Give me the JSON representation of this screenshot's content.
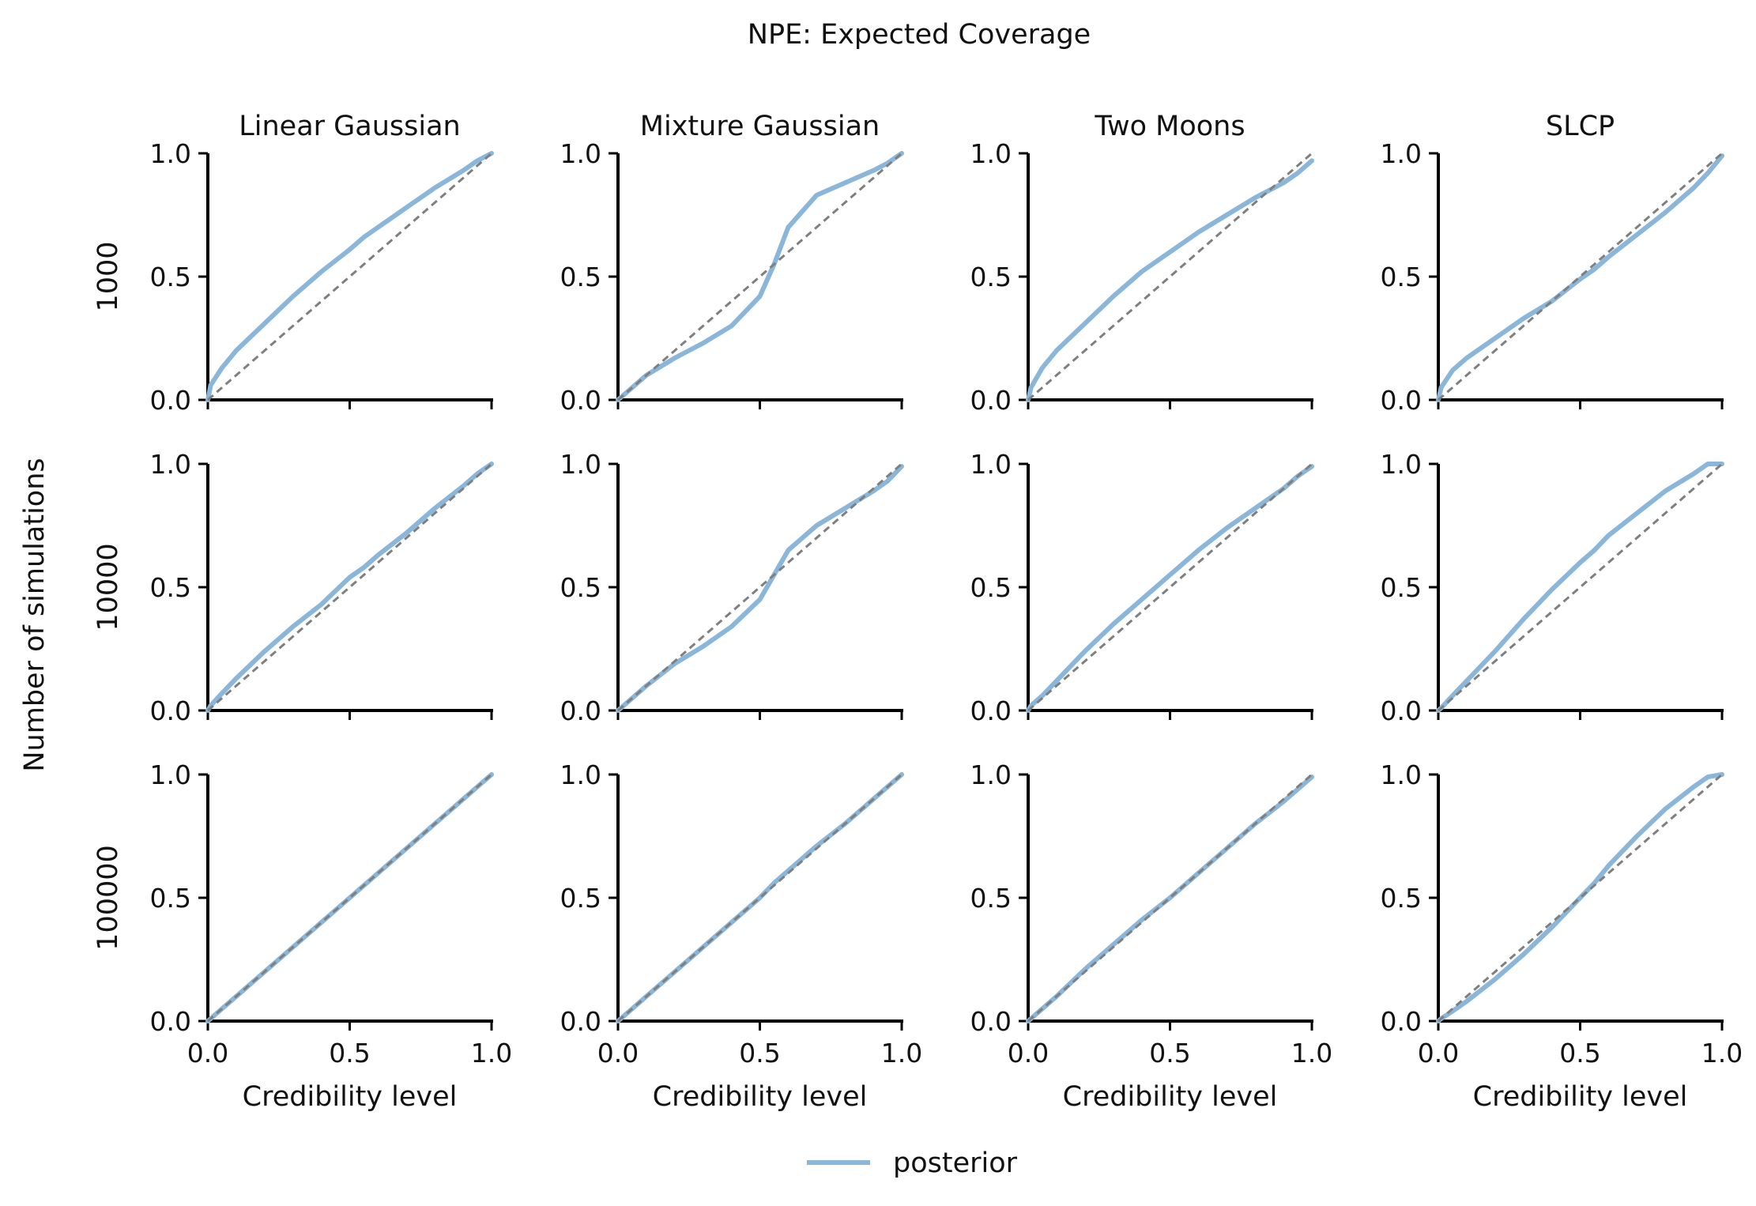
{
  "figure": {
    "title": "NPE: Expected Coverage",
    "ylabel": "Number of simulations",
    "xlabel": "Credibility level",
    "legend": {
      "label": "posterior",
      "placement": "bottom-center"
    }
  },
  "colors": {
    "posterior": "#8ab6d9",
    "reference": "#7f7f7f",
    "axis": "#000000"
  },
  "chart_data": {
    "type": "line",
    "title": "NPE: Expected Coverage",
    "xlabel": "Credibility level",
    "ylabel": "Number of simulations",
    "xlim": [
      0,
      1
    ],
    "ylim": [
      0,
      1
    ],
    "ticks": [
      "0.0",
      "0.5",
      "1.0"
    ],
    "grid": false,
    "legend_placement": "bottom-center",
    "columns": [
      "Linear Gaussian",
      "Mixture Gaussian",
      "Two Moons",
      "SLCP"
    ],
    "rows": [
      "1000",
      "10000",
      "100000"
    ],
    "x": [
      0,
      0.01,
      0.05,
      0.1,
      0.2,
      0.3,
      0.4,
      0.5,
      0.55,
      0.6,
      0.7,
      0.8,
      0.9,
      0.95,
      1.0
    ],
    "panels": [
      {
        "row": "1000",
        "column": "Linear Gaussian",
        "series": [
          {
            "name": "posterior",
            "values": [
              0,
              0.06,
              0.13,
              0.2,
              0.31,
              0.42,
              0.52,
              0.61,
              0.66,
              0.7,
              0.78,
              0.86,
              0.93,
              0.97,
              1.0
            ]
          },
          {
            "values": [
              0,
              0.01,
              0.05,
              0.1,
              0.2,
              0.3,
              0.4,
              0.5,
              0.55,
              0.6,
              0.7,
              0.8,
              0.9,
              0.95,
              1.0
            ]
          }
        ]
      },
      {
        "row": "1000",
        "column": "Mixture Gaussian",
        "series": [
          {
            "name": "posterior",
            "values": [
              0,
              0.01,
              0.05,
              0.1,
              0.17,
              0.23,
              0.3,
              0.42,
              0.55,
              0.7,
              0.83,
              0.88,
              0.93,
              0.96,
              1.0
            ]
          },
          {
            "values": [
              0,
              0.01,
              0.05,
              0.1,
              0.2,
              0.3,
              0.4,
              0.5,
              0.55,
              0.6,
              0.7,
              0.8,
              0.9,
              0.95,
              1.0
            ]
          }
        ]
      },
      {
        "row": "1000",
        "column": "Two Moons",
        "series": [
          {
            "name": "posterior",
            "values": [
              0,
              0.05,
              0.13,
              0.2,
              0.31,
              0.42,
              0.52,
              0.6,
              0.64,
              0.68,
              0.75,
              0.82,
              0.88,
              0.92,
              0.97
            ]
          },
          {
            "values": [
              0,
              0.01,
              0.05,
              0.1,
              0.2,
              0.3,
              0.4,
              0.5,
              0.55,
              0.6,
              0.7,
              0.8,
              0.9,
              0.95,
              1.0
            ]
          }
        ]
      },
      {
        "row": "1000",
        "column": "SLCP",
        "series": [
          {
            "name": "posterior",
            "values": [
              0,
              0.05,
              0.12,
              0.17,
              0.25,
              0.33,
              0.4,
              0.49,
              0.53,
              0.58,
              0.67,
              0.76,
              0.86,
              0.92,
              0.99
            ]
          },
          {
            "values": [
              0,
              0.01,
              0.05,
              0.1,
              0.2,
              0.3,
              0.4,
              0.5,
              0.55,
              0.6,
              0.7,
              0.8,
              0.9,
              0.95,
              1.0
            ]
          }
        ]
      },
      {
        "row": "10000",
        "column": "Linear Gaussian",
        "series": [
          {
            "name": "posterior",
            "values": [
              0,
              0.02,
              0.07,
              0.13,
              0.24,
              0.34,
              0.43,
              0.54,
              0.58,
              0.63,
              0.72,
              0.82,
              0.91,
              0.96,
              1.0
            ]
          },
          {
            "values": [
              0,
              0.01,
              0.05,
              0.1,
              0.2,
              0.3,
              0.4,
              0.5,
              0.55,
              0.6,
              0.7,
              0.8,
              0.9,
              0.95,
              1.0
            ]
          }
        ]
      },
      {
        "row": "10000",
        "column": "Mixture Gaussian",
        "series": [
          {
            "name": "posterior",
            "values": [
              0,
              0.01,
              0.05,
              0.1,
              0.19,
              0.26,
              0.34,
              0.45,
              0.55,
              0.65,
              0.75,
              0.82,
              0.89,
              0.93,
              0.99
            ]
          },
          {
            "values": [
              0,
              0.01,
              0.05,
              0.1,
              0.2,
              0.3,
              0.4,
              0.5,
              0.55,
              0.6,
              0.7,
              0.8,
              0.9,
              0.95,
              1.0
            ]
          }
        ]
      },
      {
        "row": "10000",
        "column": "Two Moons",
        "series": [
          {
            "name": "posterior",
            "values": [
              0,
              0.02,
              0.06,
              0.12,
              0.24,
              0.35,
              0.45,
              0.55,
              0.6,
              0.65,
              0.74,
              0.82,
              0.9,
              0.95,
              0.99
            ]
          },
          {
            "values": [
              0,
              0.01,
              0.05,
              0.1,
              0.2,
              0.3,
              0.4,
              0.5,
              0.55,
              0.6,
              0.7,
              0.8,
              0.9,
              0.95,
              1.0
            ]
          }
        ]
      },
      {
        "row": "10000",
        "column": "SLCP",
        "series": [
          {
            "name": "posterior",
            "values": [
              0,
              0.01,
              0.06,
              0.12,
              0.24,
              0.37,
              0.49,
              0.6,
              0.65,
              0.71,
              0.8,
              0.89,
              0.96,
              1.0,
              1.0
            ]
          },
          {
            "values": [
              0,
              0.01,
              0.05,
              0.1,
              0.2,
              0.3,
              0.4,
              0.5,
              0.55,
              0.6,
              0.7,
              0.8,
              0.9,
              0.95,
              1.0
            ]
          }
        ]
      },
      {
        "row": "100000",
        "column": "Linear Gaussian",
        "series": [
          {
            "name": "posterior",
            "values": [
              0,
              0.01,
              0.05,
              0.1,
              0.2,
              0.3,
              0.4,
              0.5,
              0.55,
              0.6,
              0.7,
              0.8,
              0.9,
              0.95,
              1.0
            ]
          },
          {
            "values": [
              0,
              0.01,
              0.05,
              0.1,
              0.2,
              0.3,
              0.4,
              0.5,
              0.55,
              0.6,
              0.7,
              0.8,
              0.9,
              0.95,
              1.0
            ]
          }
        ]
      },
      {
        "row": "100000",
        "column": "Mixture Gaussian",
        "series": [
          {
            "name": "posterior",
            "values": [
              0,
              0.01,
              0.05,
              0.1,
              0.2,
              0.3,
              0.4,
              0.5,
              0.56,
              0.61,
              0.71,
              0.8,
              0.9,
              0.95,
              1.0
            ]
          },
          {
            "values": [
              0,
              0.01,
              0.05,
              0.1,
              0.2,
              0.3,
              0.4,
              0.5,
              0.55,
              0.6,
              0.7,
              0.8,
              0.9,
              0.95,
              1.0
            ]
          }
        ]
      },
      {
        "row": "100000",
        "column": "Two Moons",
        "series": [
          {
            "name": "posterior",
            "values": [
              0,
              0.01,
              0.05,
              0.1,
              0.21,
              0.31,
              0.41,
              0.5,
              0.55,
              0.6,
              0.7,
              0.8,
              0.89,
              0.94,
              0.99
            ]
          },
          {
            "values": [
              0,
              0.01,
              0.05,
              0.1,
              0.2,
              0.3,
              0.4,
              0.5,
              0.55,
              0.6,
              0.7,
              0.8,
              0.9,
              0.95,
              1.0
            ]
          }
        ]
      },
      {
        "row": "100000",
        "column": "SLCP",
        "series": [
          {
            "name": "posterior",
            "values": [
              0,
              0.01,
              0.04,
              0.08,
              0.17,
              0.27,
              0.38,
              0.5,
              0.56,
              0.63,
              0.75,
              0.86,
              0.95,
              0.99,
              1.0
            ]
          },
          {
            "values": [
              0,
              0.01,
              0.05,
              0.1,
              0.2,
              0.3,
              0.4,
              0.5,
              0.55,
              0.6,
              0.7,
              0.8,
              0.9,
              0.95,
              1.0
            ]
          }
        ]
      }
    ]
  }
}
